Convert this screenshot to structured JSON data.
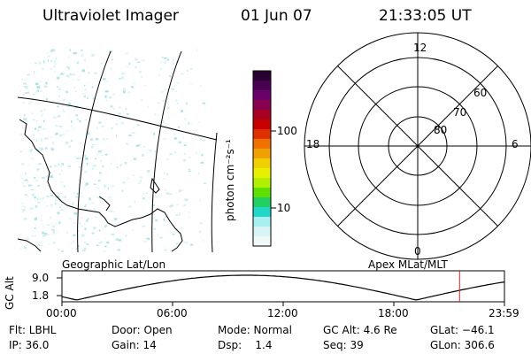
{
  "header": {
    "instrument": "Ultraviolet Imager",
    "date": "01 Jun 07",
    "time": "21:33:05 UT"
  },
  "colorbar": {
    "unit_label": "photon cm⁻²s⁻¹",
    "tick_labels": [
      "100",
      "10"
    ],
    "colors": [
      "#2a0030",
      "#4a0050",
      "#6a006a",
      "#8a0050",
      "#a80020",
      "#c80000",
      "#e03000",
      "#f07000",
      "#f0a000",
      "#f0d000",
      "#e8f000",
      "#b0f000",
      "#60e000",
      "#20d060",
      "#20d8c8",
      "#a8f0f0",
      "#d8f4f4",
      "#f0f8f8"
    ]
  },
  "geo_map": {
    "label": "Geographic Lat/Lon"
  },
  "polar_plot": {
    "label": "Apex MLat/MLT",
    "mlt_labels": {
      "top": "12",
      "left": "18",
      "right": "6",
      "bottom": "0"
    },
    "lat_labels": [
      "60",
      "70",
      "80"
    ]
  },
  "timeline": {
    "ylabel": "GC Alt",
    "y_ticks": [
      "9.0",
      "1.8"
    ],
    "x_ticks": [
      "00:00",
      "06:00",
      "12:00",
      "18:00",
      "23:59"
    ],
    "current_marker_hour": 21.55,
    "marker_color": "#e02020"
  },
  "footer": {
    "row1": {
      "flt": "Flt: LBHL",
      "door": "Door: Open",
      "mode": "Mode: Normal",
      "gcalt": "GC Alt: 4.6 Re",
      "glat": "GLat: −46.1"
    },
    "row2": {
      "ip": "IP: 36.0",
      "gain": "Gain: 14",
      "dsp": "Dsp:    1.4",
      "seq": "Seq: 39",
      "glon": "GLon: 306.6"
    }
  }
}
